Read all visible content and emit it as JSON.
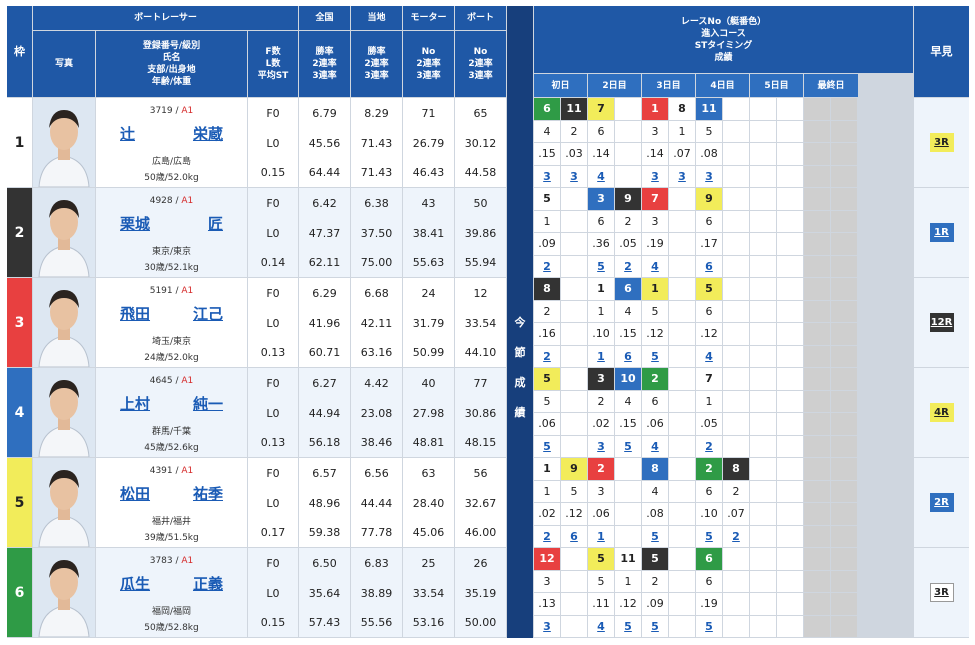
{
  "header": {
    "waku": "枠",
    "racer": "ボートレーサー",
    "photo": "写真",
    "info": [
      "登録番号/級別",
      "氏名",
      "支部/出身地",
      "年齢/体重"
    ],
    "fl": [
      "F数",
      "L数",
      "平均ST"
    ],
    "zenkoku": "全国",
    "touchi": "当地",
    "motor": "モーター",
    "boat": "ボート",
    "rate3": [
      "勝率",
      "2連率",
      "3連率"
    ],
    "rateNo": [
      "No",
      "2連率",
      "3連率"
    ],
    "race": [
      "レースNo（艇番色）",
      "進入コース",
      "STタイミング",
      "成績"
    ],
    "days": [
      "初日",
      "2日目",
      "3日目",
      "4日目",
      "5日目",
      "最終日"
    ],
    "hayami": "早見",
    "konsetsu": [
      "今",
      "節",
      "成",
      "績"
    ]
  },
  "colors": {
    "waku": [
      "#ffffff",
      "#333333",
      "#e84040",
      "#2f6fbf",
      "#f2ec5a",
      "#2f9b46"
    ],
    "wakuText": [
      "#222222",
      "#ffffff",
      "#ffffff",
      "#ffffff",
      "#222222",
      "#ffffff"
    ]
  },
  "racers": [
    {
      "waku": "1",
      "reg": "3719",
      "cls": "A1",
      "sei": "辻",
      "mei": "栄蔵",
      "from": "広島/広島",
      "age": "50歳/52.0kg",
      "F": "F0",
      "L": "L0",
      "st": "0.15",
      "zen": [
        "6.79",
        "45.56",
        "64.44"
      ],
      "tou": [
        "8.29",
        "71.43",
        "71.43"
      ],
      "mot": [
        "71",
        "26.79",
        "46.43"
      ],
      "boat": [
        "65",
        "30.12",
        "44.58"
      ],
      "races": [
        {
          "n": "6",
          "c": 6,
          "p": "4",
          "st": ".15",
          "r": "3"
        },
        {
          "n": "11",
          "c": 2,
          "p": "2",
          "st": ".03",
          "r": "3"
        },
        {
          "n": "7",
          "c": 5,
          "p": "6",
          "st": ".14",
          "r": "4"
        },
        {
          "n": "",
          "c": 0,
          "p": "",
          "st": "",
          "r": ""
        },
        {
          "n": "1",
          "c": 3,
          "p": "3",
          "st": ".14",
          "r": "3"
        },
        {
          "n": "8",
          "c": 1,
          "p": "1",
          "st": ".07",
          "r": "3"
        },
        {
          "n": "11",
          "c": 4,
          "p": "5",
          "st": ".08",
          "r": "3"
        }
      ],
      "hay": "3R",
      "hc": 5
    },
    {
      "waku": "2",
      "reg": "4928",
      "cls": "A1",
      "sei": "栗城",
      "mei": "匠",
      "from": "東京/東京",
      "age": "30歳/52.1kg",
      "F": "F0",
      "L": "L0",
      "st": "0.14",
      "zen": [
        "6.42",
        "47.37",
        "62.11"
      ],
      "tou": [
        "6.38",
        "37.50",
        "75.00"
      ],
      "mot": [
        "43",
        "38.41",
        "55.63"
      ],
      "boat": [
        "50",
        "39.86",
        "55.94"
      ],
      "races": [
        {
          "n": "5",
          "c": 1,
          "p": "1",
          "st": ".09",
          "r": "2"
        },
        {
          "n": "",
          "c": 0,
          "p": "",
          "st": "",
          "r": ""
        },
        {
          "n": "3",
          "c": 4,
          "p": "6",
          "st": ".36",
          "r": "5"
        },
        {
          "n": "9",
          "c": 2,
          "p": "2",
          "st": ".05",
          "r": "2"
        },
        {
          "n": "7",
          "c": 3,
          "p": "3",
          "st": ".19",
          "r": "4"
        },
        {
          "n": "",
          "c": 0,
          "p": "",
          "st": "",
          "r": ""
        },
        {
          "n": "9",
          "c": 5,
          "p": "6",
          "st": ".17",
          "r": "6"
        }
      ],
      "hay": "1R",
      "hc": 4
    },
    {
      "waku": "3",
      "reg": "5191",
      "cls": "A1",
      "sei": "飛田",
      "mei": "江己",
      "from": "埼玉/東京",
      "age": "24歳/52.0kg",
      "F": "F0",
      "L": "L0",
      "st": "0.13",
      "zen": [
        "6.29",
        "41.96",
        "60.71"
      ],
      "tou": [
        "6.68",
        "42.11",
        "63.16"
      ],
      "mot": [
        "24",
        "31.79",
        "50.99"
      ],
      "boat": [
        "12",
        "33.54",
        "44.10"
      ],
      "races": [
        {
          "n": "8",
          "c": 2,
          "p": "2",
          "st": ".16",
          "r": "2"
        },
        {
          "n": "",
          "c": 0,
          "p": "",
          "st": "",
          "r": ""
        },
        {
          "n": "1",
          "c": 1,
          "p": "1",
          "st": ".10",
          "r": "1"
        },
        {
          "n": "6",
          "c": 4,
          "p": "4",
          "st": ".15",
          "r": "6"
        },
        {
          "n": "1",
          "c": 5,
          "p": "5",
          "st": ".12",
          "r": "5"
        },
        {
          "n": "",
          "c": 0,
          "p": "",
          "st": "",
          "r": ""
        },
        {
          "n": "5",
          "c": 5,
          "p": "6",
          "st": ".12",
          "r": "4"
        }
      ],
      "hay": "12R",
      "hc": 2
    },
    {
      "waku": "4",
      "reg": "4645",
      "cls": "A1",
      "sei": "上村",
      "mei": "純一",
      "from": "群馬/千葉",
      "age": "45歳/52.6kg",
      "F": "F0",
      "L": "L0",
      "st": "0.13",
      "zen": [
        "6.27",
        "44.94",
        "56.18"
      ],
      "tou": [
        "4.42",
        "23.08",
        "38.46"
      ],
      "mot": [
        "40",
        "27.98",
        "48.81"
      ],
      "boat": [
        "77",
        "30.86",
        "48.15"
      ],
      "races": [
        {
          "n": "5",
          "c": 5,
          "p": "5",
          "st": ".06",
          "r": "5"
        },
        {
          "n": "",
          "c": 0,
          "p": "",
          "st": "",
          "r": ""
        },
        {
          "n": "3",
          "c": 2,
          "p": "2",
          "st": ".02",
          "r": "3"
        },
        {
          "n": "10",
          "c": 4,
          "p": "4",
          "st": ".15",
          "r": "5"
        },
        {
          "n": "2",
          "c": 6,
          "p": "6",
          "st": ".06",
          "r": "4"
        },
        {
          "n": "",
          "c": 0,
          "p": "",
          "st": "",
          "r": ""
        },
        {
          "n": "7",
          "c": 1,
          "p": "1",
          "st": ".05",
          "r": "2"
        }
      ],
      "hay": "4R",
      "hc": 5
    },
    {
      "waku": "5",
      "reg": "4391",
      "cls": "A1",
      "sei": "松田",
      "mei": "祐季",
      "from": "福井/福井",
      "age": "39歳/51.5kg",
      "F": "F0",
      "L": "L0",
      "st": "0.17",
      "zen": [
        "6.57",
        "48.96",
        "59.38"
      ],
      "tou": [
        "6.56",
        "44.44",
        "77.78"
      ],
      "mot": [
        "63",
        "28.40",
        "45.06"
      ],
      "boat": [
        "56",
        "32.67",
        "46.00"
      ],
      "races": [
        {
          "n": "1",
          "c": 1,
          "p": "1",
          "st": ".02",
          "r": "2"
        },
        {
          "n": "9",
          "c": 5,
          "p": "5",
          "st": ".12",
          "r": "6"
        },
        {
          "n": "2",
          "c": 3,
          "p": "3",
          "st": ".06",
          "r": "1"
        },
        {
          "n": "",
          "c": 0,
          "p": "",
          "st": "",
          "r": ""
        },
        {
          "n": "8",
          "c": 4,
          "p": "4",
          "st": ".08",
          "r": "5"
        },
        {
          "n": "",
          "c": 0,
          "p": "",
          "st": "",
          "r": ""
        },
        {
          "n": "2",
          "c": 6,
          "p": "6",
          "st": ".10",
          "r": "5"
        },
        {
          "n": "8",
          "c": 2,
          "p": "2",
          "st": ".07",
          "r": "2"
        }
      ],
      "hay": "2R",
      "hc": 4
    },
    {
      "waku": "6",
      "reg": "3783",
      "cls": "A1",
      "sei": "瓜生",
      "mei": "正義",
      "from": "福岡/福岡",
      "age": "50歳/52.8kg",
      "F": "F0",
      "L": "L0",
      "st": "0.15",
      "zen": [
        "6.50",
        "35.64",
        "57.43"
      ],
      "tou": [
        "6.83",
        "38.89",
        "55.56"
      ],
      "mot": [
        "25",
        "33.54",
        "53.16"
      ],
      "boat": [
        "26",
        "35.19",
        "50.00"
      ],
      "races": [
        {
          "n": "12",
          "c": 3,
          "p": "3",
          "st": ".13",
          "r": "3"
        },
        {
          "n": "",
          "c": 0,
          "p": "",
          "st": "",
          "r": ""
        },
        {
          "n": "5",
          "c": 5,
          "p": "5",
          "st": ".11",
          "r": "4"
        },
        {
          "n": "11",
          "c": 1,
          "p": "1",
          "st": ".12",
          "r": "5"
        },
        {
          "n": "5",
          "c": 2,
          "p": "2",
          "st": ".09",
          "r": "5"
        },
        {
          "n": "",
          "c": 0,
          "p": "",
          "st": "",
          "r": ""
        },
        {
          "n": "6",
          "c": 6,
          "p": "6",
          "st": ".19",
          "r": "5"
        }
      ],
      "hay": "3R",
      "hc": 1
    }
  ]
}
